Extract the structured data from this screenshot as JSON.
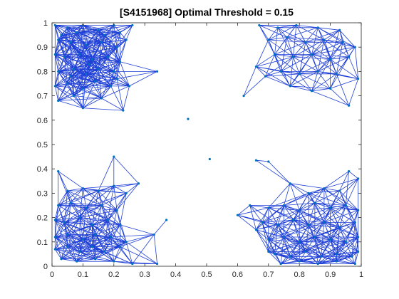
{
  "chart_data": {
    "type": "scatter",
    "title": "[S4151968] Optimal Threshold = 0.15",
    "xlabel": "",
    "ylabel": "",
    "xlim": [
      0,
      1
    ],
    "ylim": [
      0,
      1
    ],
    "xticks": [
      "0",
      "0.1",
      "0.2",
      "0.3",
      "0.4",
      "0.5",
      "0.6",
      "0.7",
      "0.8",
      "0.9",
      "1"
    ],
    "yticks": [
      "0",
      "0.1",
      "0.2",
      "0.3",
      "0.4",
      "0.5",
      "0.6",
      "0.7",
      "0.8",
      "0.9",
      "1"
    ],
    "grid": false,
    "edge_threshold": 0.15,
    "colors": {
      "line": "#1f3fd6",
      "marker": "#0072BD",
      "axis": "#262626"
    },
    "series": [
      {
        "points": [
          {
            "x": 0.01,
            "y": 0.99
          },
          {
            "x": 0.05,
            "y": 0.98
          },
          {
            "x": 0.1,
            "y": 0.99
          },
          {
            "x": 0.15,
            "y": 0.97
          },
          {
            "x": 0.2,
            "y": 0.99
          },
          {
            "x": 0.26,
            "y": 0.99
          },
          {
            "x": 0.22,
            "y": 0.96
          },
          {
            "x": 0.02,
            "y": 0.93
          },
          {
            "x": 0.06,
            "y": 0.92
          },
          {
            "x": 0.11,
            "y": 0.91
          },
          {
            "x": 0.16,
            "y": 0.92
          },
          {
            "x": 0.21,
            "y": 0.9
          },
          {
            "x": 0.24,
            "y": 0.93
          },
          {
            "x": 0.01,
            "y": 0.87
          },
          {
            "x": 0.04,
            "y": 0.86
          },
          {
            "x": 0.09,
            "y": 0.87
          },
          {
            "x": 0.13,
            "y": 0.85
          },
          {
            "x": 0.18,
            "y": 0.86
          },
          {
            "x": 0.22,
            "y": 0.84
          },
          {
            "x": 0.02,
            "y": 0.8
          },
          {
            "x": 0.07,
            "y": 0.81
          },
          {
            "x": 0.11,
            "y": 0.79
          },
          {
            "x": 0.15,
            "y": 0.81
          },
          {
            "x": 0.2,
            "y": 0.8
          },
          {
            "x": 0.34,
            "y": 0.8
          },
          {
            "x": 0.01,
            "y": 0.74
          },
          {
            "x": 0.05,
            "y": 0.75
          },
          {
            "x": 0.1,
            "y": 0.73
          },
          {
            "x": 0.14,
            "y": 0.76
          },
          {
            "x": 0.19,
            "y": 0.74
          },
          {
            "x": 0.25,
            "y": 0.74
          },
          {
            "x": 0.02,
            "y": 0.68
          },
          {
            "x": 0.07,
            "y": 0.7
          },
          {
            "x": 0.1,
            "y": 0.65
          },
          {
            "x": 0.16,
            "y": 0.69
          },
          {
            "x": 0.23,
            "y": 0.64
          },
          {
            "x": 0.03,
            "y": 0.95
          },
          {
            "x": 0.08,
            "y": 0.96
          },
          {
            "x": 0.17,
            "y": 0.95
          },
          {
            "x": 0.12,
            "y": 0.83
          },
          {
            "x": 0.06,
            "y": 0.78
          },
          {
            "x": 0.21,
            "y": 0.77
          },
          {
            "x": 0.67,
            "y": 0.99
          },
          {
            "x": 0.73,
            "y": 0.98
          },
          {
            "x": 0.79,
            "y": 0.99
          },
          {
            "x": 0.86,
            "y": 0.98
          },
          {
            "x": 0.93,
            "y": 0.97
          },
          {
            "x": 0.7,
            "y": 0.93
          },
          {
            "x": 0.76,
            "y": 0.94
          },
          {
            "x": 0.82,
            "y": 0.92
          },
          {
            "x": 0.88,
            "y": 0.93
          },
          {
            "x": 0.94,
            "y": 0.92
          },
          {
            "x": 0.98,
            "y": 0.9
          },
          {
            "x": 0.72,
            "y": 0.87
          },
          {
            "x": 0.78,
            "y": 0.86
          },
          {
            "x": 0.84,
            "y": 0.87
          },
          {
            "x": 0.9,
            "y": 0.85
          },
          {
            "x": 0.96,
            "y": 0.86
          },
          {
            "x": 0.74,
            "y": 0.8
          },
          {
            "x": 0.8,
            "y": 0.79
          },
          {
            "x": 0.86,
            "y": 0.8
          },
          {
            "x": 0.92,
            "y": 0.79
          },
          {
            "x": 0.99,
            "y": 0.77
          },
          {
            "x": 0.77,
            "y": 0.74
          },
          {
            "x": 0.84,
            "y": 0.72
          },
          {
            "x": 0.9,
            "y": 0.73
          },
          {
            "x": 0.96,
            "y": 0.66
          },
          {
            "x": 0.62,
            "y": 0.7
          },
          {
            "x": 0.66,
            "y": 0.82
          },
          {
            "x": 0.69,
            "y": 0.78
          },
          {
            "x": 0.44,
            "y": 0.605
          },
          {
            "x": 0.51,
            "y": 0.44
          },
          {
            "x": 0.66,
            "y": 0.435
          },
          {
            "x": 0.7,
            "y": 0.43
          },
          {
            "x": 0.02,
            "y": 0.39
          },
          {
            "x": 0.2,
            "y": 0.45
          },
          {
            "x": 0.28,
            "y": 0.34
          },
          {
            "x": 0.37,
            "y": 0.19
          },
          {
            "x": 0.05,
            "y": 0.31
          },
          {
            "x": 0.1,
            "y": 0.32
          },
          {
            "x": 0.15,
            "y": 0.31
          },
          {
            "x": 0.2,
            "y": 0.33
          },
          {
            "x": 0.24,
            "y": 0.3
          },
          {
            "x": 0.02,
            "y": 0.25
          },
          {
            "x": 0.06,
            "y": 0.26
          },
          {
            "x": 0.11,
            "y": 0.24
          },
          {
            "x": 0.16,
            "y": 0.25
          },
          {
            "x": 0.21,
            "y": 0.23
          },
          {
            "x": 0.01,
            "y": 0.19
          },
          {
            "x": 0.04,
            "y": 0.18
          },
          {
            "x": 0.09,
            "y": 0.2
          },
          {
            "x": 0.13,
            "y": 0.17
          },
          {
            "x": 0.18,
            "y": 0.19
          },
          {
            "x": 0.22,
            "y": 0.17
          },
          {
            "x": 0.01,
            "y": 0.12
          },
          {
            "x": 0.05,
            "y": 0.13
          },
          {
            "x": 0.1,
            "y": 0.11
          },
          {
            "x": 0.14,
            "y": 0.13
          },
          {
            "x": 0.19,
            "y": 0.12
          },
          {
            "x": 0.24,
            "y": 0.1
          },
          {
            "x": 0.33,
            "y": 0.13
          },
          {
            "x": 0.01,
            "y": 0.07
          },
          {
            "x": 0.05,
            "y": 0.08
          },
          {
            "x": 0.09,
            "y": 0.06
          },
          {
            "x": 0.13,
            "y": 0.08
          },
          {
            "x": 0.17,
            "y": 0.06
          },
          {
            "x": 0.22,
            "y": 0.08
          },
          {
            "x": 0.03,
            "y": 0.03
          },
          {
            "x": 0.08,
            "y": 0.02
          },
          {
            "x": 0.14,
            "y": 0.03
          },
          {
            "x": 0.2,
            "y": 0.02
          },
          {
            "x": 0.26,
            "y": 0.01
          },
          {
            "x": 0.34,
            "y": 0.01
          },
          {
            "x": 0.6,
            "y": 0.21
          },
          {
            "x": 0.64,
            "y": 0.25
          },
          {
            "x": 0.66,
            "y": 0.15
          },
          {
            "x": 0.7,
            "y": 0.06
          },
          {
            "x": 0.77,
            "y": 0.34
          },
          {
            "x": 0.83,
            "y": 0.3
          },
          {
            "x": 0.88,
            "y": 0.32
          },
          {
            "x": 0.93,
            "y": 0.31
          },
          {
            "x": 0.96,
            "y": 0.39
          },
          {
            "x": 0.99,
            "y": 0.36
          },
          {
            "x": 0.7,
            "y": 0.24
          },
          {
            "x": 0.75,
            "y": 0.25
          },
          {
            "x": 0.8,
            "y": 0.23
          },
          {
            "x": 0.85,
            "y": 0.26
          },
          {
            "x": 0.9,
            "y": 0.24
          },
          {
            "x": 0.95,
            "y": 0.25
          },
          {
            "x": 0.99,
            "y": 0.23
          },
          {
            "x": 0.68,
            "y": 0.18
          },
          {
            "x": 0.73,
            "y": 0.17
          },
          {
            "x": 0.78,
            "y": 0.19
          },
          {
            "x": 0.83,
            "y": 0.17
          },
          {
            "x": 0.88,
            "y": 0.18
          },
          {
            "x": 0.93,
            "y": 0.16
          },
          {
            "x": 0.98,
            "y": 0.18
          },
          {
            "x": 0.7,
            "y": 0.11
          },
          {
            "x": 0.75,
            "y": 0.12
          },
          {
            "x": 0.8,
            "y": 0.1
          },
          {
            "x": 0.85,
            "y": 0.12
          },
          {
            "x": 0.9,
            "y": 0.11
          },
          {
            "x": 0.95,
            "y": 0.1
          },
          {
            "x": 0.99,
            "y": 0.12
          },
          {
            "x": 0.72,
            "y": 0.05
          },
          {
            "x": 0.77,
            "y": 0.04
          },
          {
            "x": 0.82,
            "y": 0.06
          },
          {
            "x": 0.87,
            "y": 0.04
          },
          {
            "x": 0.92,
            "y": 0.05
          },
          {
            "x": 0.97,
            "y": 0.04
          },
          {
            "x": 0.99,
            "y": 0.06
          },
          {
            "x": 0.74,
            "y": 0.01
          },
          {
            "x": 0.8,
            "y": 0.02
          },
          {
            "x": 0.86,
            "y": 0.01
          },
          {
            "x": 0.92,
            "y": 0.02
          },
          {
            "x": 0.98,
            "y": 0.01
          }
        ]
      }
    ]
  }
}
